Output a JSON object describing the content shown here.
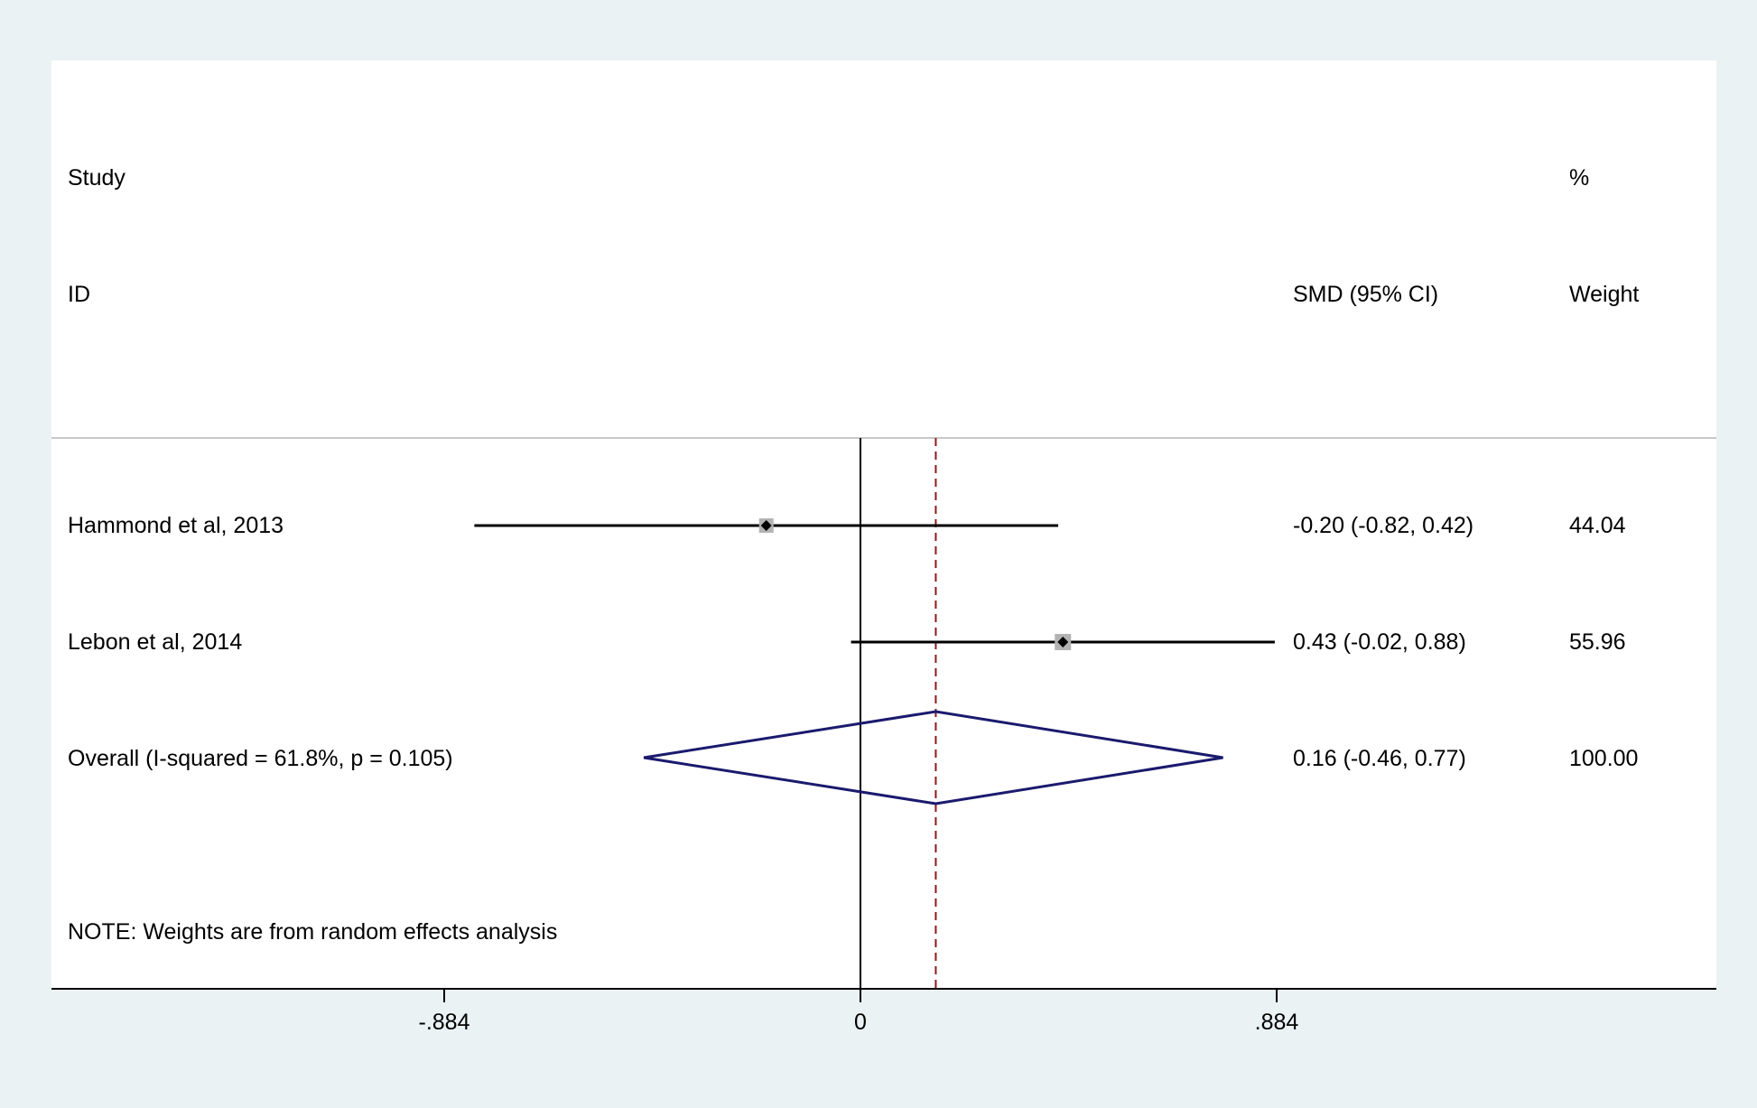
{
  "chart_data": {
    "type": "forest",
    "header": {
      "study_line1": "Study",
      "study_line2": "ID",
      "effect_label": "SMD (95% CI)",
      "weight_line1": "%",
      "weight_line2": "Weight"
    },
    "studies": [
      {
        "label": "Hammond et al, 2013",
        "smd": -0.2,
        "lower": -0.82,
        "upper": 0.42,
        "ci_text": "-0.20 (-0.82, 0.42)",
        "weight": 44.04,
        "weight_text": "44.04"
      },
      {
        "label": "Lebon et al, 2014",
        "smd": 0.43,
        "lower": -0.02,
        "upper": 0.88,
        "ci_text": "0.43 (-0.02, 0.88)",
        "weight": 55.96,
        "weight_text": "55.96"
      }
    ],
    "overall": {
      "label": "Overall  (I-squared = 61.8%, p = 0.105)",
      "smd": 0.16,
      "lower": -0.46,
      "upper": 0.77,
      "ci_text": "0.16 (-0.46, 0.77)",
      "weight_text": "100.00"
    },
    "note": "NOTE: Weights are from random effects analysis",
    "x_ticks": [
      {
        "value": -0.884,
        "label": "-.884"
      },
      {
        "value": 0,
        "label": "0"
      },
      {
        "value": 0.884,
        "label": ".884"
      }
    ],
    "null_line": 0,
    "colors": {
      "background": "#eaf2f3",
      "plot_area": "#ffffff",
      "ci_line": "#000000",
      "study_box": "#b3b3b3",
      "overall_diamond": "#1a1a6e",
      "overall_line": "#8b1a1a",
      "separator": "#c8c8c8"
    }
  }
}
